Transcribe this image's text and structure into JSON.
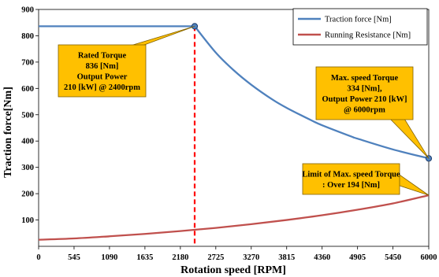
{
  "chart_data": {
    "type": "line",
    "xlabel": "Rotation speed [RPM]",
    "ylabel": "Traction force[Nm]",
    "xlim": [
      0,
      6000
    ],
    "ylim": [
      0,
      900
    ],
    "x_ticks": [
      0,
      545,
      1090,
      1635,
      2180,
      2725,
      3270,
      3815,
      4360,
      4905,
      5450,
      6000
    ],
    "y_ticks": [
      100,
      200,
      300,
      400,
      500,
      600,
      700,
      800,
      900
    ],
    "grid": false,
    "legend_position": "top-right",
    "series": [
      {
        "name": "Traction force [Nm]",
        "color": "#4f81bd",
        "x": [
          0,
          2400,
          2725,
          3000,
          3270,
          3600,
          3815,
          4200,
          4360,
          4800,
          4905,
          5450,
          6000
        ],
        "y": [
          836,
          836,
          736,
          669,
          614,
          557,
          526,
          478,
          460,
          418,
          409,
          368,
          334
        ]
      },
      {
        "name": "Running Resistance [Nm]",
        "color": "#c0504d",
        "x": [
          0,
          545,
          1090,
          1635,
          2180,
          2725,
          3270,
          3815,
          4360,
          4905,
          5450,
          6000
        ],
        "y": [
          25,
          30,
          38,
          47,
          58,
          70,
          84,
          100,
          118,
          139,
          163,
          194
        ]
      }
    ],
    "markers": [
      {
        "x": 2400,
        "y": 836
      },
      {
        "x": 6000,
        "y": 334
      }
    ],
    "reference_line": {
      "x": 2400,
      "color": "#ff0000"
    },
    "annotations": [
      {
        "lines": [
          "Rated Torque",
          "836 [Nm]",
          "Output Power",
          "210 [kW] @ 2400rpm"
        ],
        "target_x": 2400,
        "target_y": 836
      },
      {
        "lines": [
          "Max. speed Torque",
          "334 [Nm],",
          "Output Power 210 [kW]",
          "@ 6000rpm"
        ],
        "target_x": 6000,
        "target_y": 334
      },
      {
        "lines": [
          "Limit of Max. speed Torque",
          ": Over 194 [Nm]"
        ],
        "target_x": 6000,
        "target_y": 194
      }
    ],
    "callout_fill": "#ffc000"
  }
}
